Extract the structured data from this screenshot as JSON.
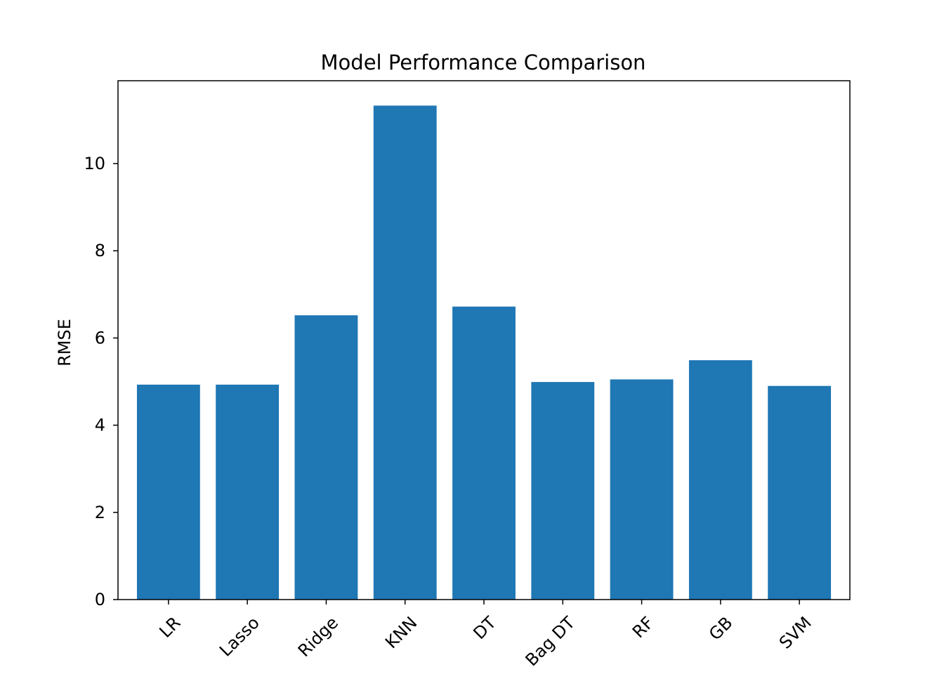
{
  "chart_data": {
    "type": "bar",
    "title": "Model Performance Comparison",
    "xlabel": "",
    "ylabel": "RMSE",
    "categories": [
      "LR",
      "Lasso",
      "Ridge",
      "KNN",
      "DT",
      "Bag DT",
      "RF",
      "GB",
      "SVM"
    ],
    "values": [
      4.93,
      4.93,
      6.52,
      11.33,
      6.72,
      4.99,
      5.05,
      5.49,
      4.9
    ],
    "ylim": [
      0,
      11.9
    ],
    "yticks": [
      0,
      2,
      4,
      6,
      8,
      10
    ],
    "xtick_rotation_deg": 45,
    "grid": false,
    "legend": "none",
    "colors": {
      "bar": "#1f77b4",
      "axes": "#000000",
      "background": "#ffffff"
    }
  }
}
